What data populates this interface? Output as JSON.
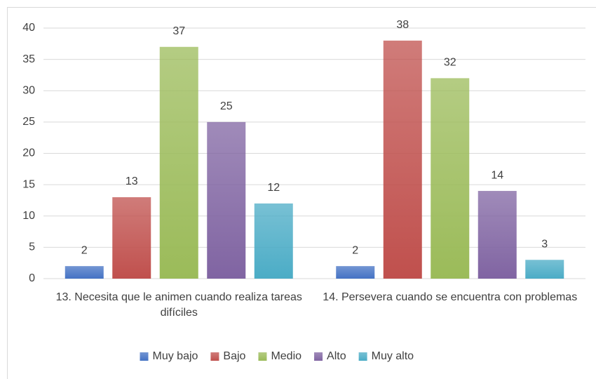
{
  "chart_data": {
    "type": "bar",
    "categories": [
      "13. Necesita que le animen cuando realiza tareas difíciles",
      "14. Persevera cuando se encuentra con problemas"
    ],
    "series": [
      {
        "name": "Muy bajo",
        "color": "#4472c4",
        "values": [
          2,
          2
        ]
      },
      {
        "name": "Bajo",
        "color": "#c0504d",
        "values": [
          13,
          38
        ]
      },
      {
        "name": "Medio",
        "color": "#9bbb59",
        "values": [
          37,
          32
        ]
      },
      {
        "name": "Alto",
        "color": "#8064a2",
        "values": [
          25,
          14
        ]
      },
      {
        "name": "Muy alto",
        "color": "#4bacc6",
        "values": [
          12,
          3
        ]
      }
    ],
    "ylim": [
      0,
      40
    ],
    "yticks": [
      0,
      5,
      10,
      15,
      20,
      25,
      30,
      35,
      40
    ],
    "grid": true,
    "legend": "bottom"
  }
}
